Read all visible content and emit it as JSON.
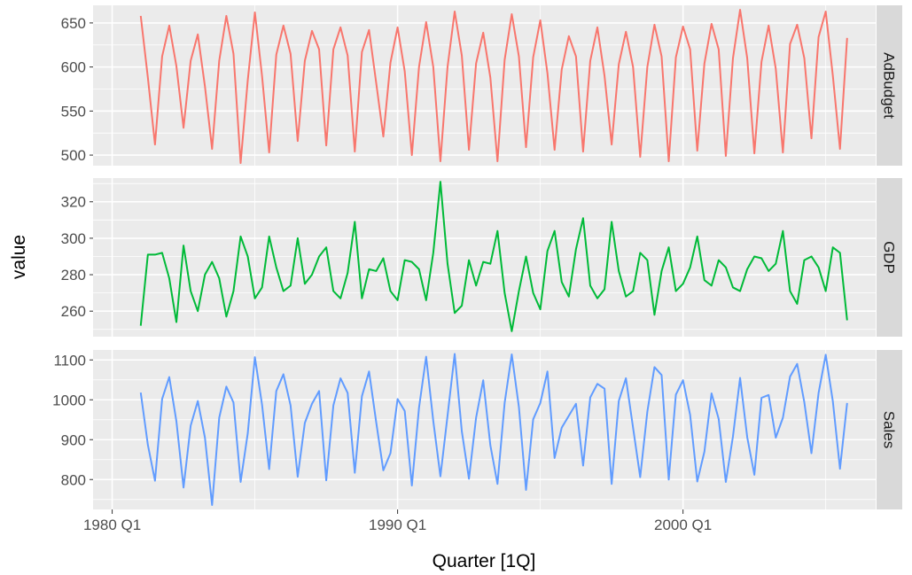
{
  "chart_data": {
    "type": "line",
    "xlabel": "Quarter [1Q]",
    "ylabel": "value",
    "x_start_label": "1981 Q1",
    "x_ticks": [
      {
        "label": "1980 Q1",
        "year": 1980
      },
      {
        "label": "1990 Q1",
        "year": 1990
      },
      {
        "label": "2000 Q1",
        "year": 2000
      }
    ],
    "colors": {
      "panel_bg": "#ebebeb",
      "strip_bg": "#d9d9d9",
      "grid": "#ffffff"
    },
    "panels": [
      {
        "name": "AdBudget",
        "color": "#f8766d",
        "ylim": [
          488,
          670
        ],
        "y_ticks": [
          500,
          550,
          600,
          650
        ],
        "values": [
          658,
          588,
          512,
          612,
          647,
          601,
          531,
          607,
          637,
          578,
          507,
          607,
          658,
          615,
          491,
          585,
          662,
          590,
          503,
          614,
          647,
          615,
          516,
          607,
          641,
          620,
          511,
          620,
          645,
          613,
          504,
          617,
          642,
          582,
          521,
          605,
          645,
          595,
          500,
          600,
          651,
          600,
          493,
          600,
          663,
          613,
          506,
          604,
          639,
          588,
          493,
          608,
          660,
          612,
          509,
          611,
          653,
          593,
          506,
          597,
          635,
          612,
          504,
          607,
          645,
          590,
          512,
          603,
          640,
          600,
          498,
          600,
          648,
          612,
          493,
          611,
          646,
          620,
          505,
          604,
          649,
          620,
          499,
          610,
          665,
          610,
          502,
          606,
          647,
          598,
          503,
          626,
          648,
          610,
          519,
          634,
          663,
          590,
          507,
          633
        ]
      },
      {
        "name": "GDP",
        "color": "#00ba38",
        "ylim": [
          246,
          333
        ],
        "y_ticks": [
          260,
          280,
          300,
          320
        ],
        "values": [
          252,
          291,
          291,
          292,
          278,
          254,
          296,
          271,
          260,
          280,
          287,
          278,
          257,
          271,
          301,
          290,
          267,
          273,
          301,
          284,
          271,
          274,
          300,
          275,
          280,
          290,
          295,
          271,
          267,
          281,
          309,
          267,
          283,
          282,
          289,
          271,
          266,
          288,
          287,
          283,
          266,
          292,
          331,
          286,
          259,
          263,
          288,
          274,
          287,
          286,
          304,
          270,
          249,
          271,
          290,
          270,
          261,
          293,
          304,
          276,
          268,
          294,
          311,
          274,
          267,
          272,
          309,
          282,
          268,
          271,
          292,
          288,
          258,
          282,
          295,
          271,
          275,
          284,
          301,
          277,
          274,
          288,
          284,
          273,
          271,
          283,
          290,
          289,
          282,
          286,
          304,
          271,
          264,
          288,
          290,
          284,
          271,
          295,
          292,
          255
        ]
      },
      {
        "name": "Sales",
        "color": "#619cff",
        "ylim": [
          725,
          1125
        ],
        "y_ticks": [
          800,
          900,
          1000,
          1100
        ],
        "values": [
          1018,
          887,
          797,
          1002,
          1057,
          946,
          780,
          935,
          997,
          905,
          736,
          955,
          1033,
          993,
          794,
          916,
          1107,
          988,
          826,
          1022,
          1064,
          986,
          807,
          942,
          990,
          1022,
          798,
          986,
          1054,
          1017,
          817,
          1009,
          1071,
          944,
          823,
          866,
          1002,
          972,
          785,
          980,
          1108,
          947,
          808,
          960,
          1115,
          921,
          802,
          955,
          1049,
          886,
          789,
          992,
          1114,
          982,
          774,
          951,
          992,
          1071,
          854,
          930,
          960,
          990,
          835,
          1006,
          1040,
          1028,
          789,
          997,
          1054,
          930,
          806,
          970,
          1082,
          1062,
          800,
          1013,
          1049,
          962,
          795,
          870,
          1016,
          952,
          794,
          908,
          1055,
          906,
          812,
          1005,
          1012,
          905,
          955,
          1058,
          1090,
          994,
          866,
          1017,
          1113,
          996,
          827,
          992
        ]
      }
    ]
  }
}
